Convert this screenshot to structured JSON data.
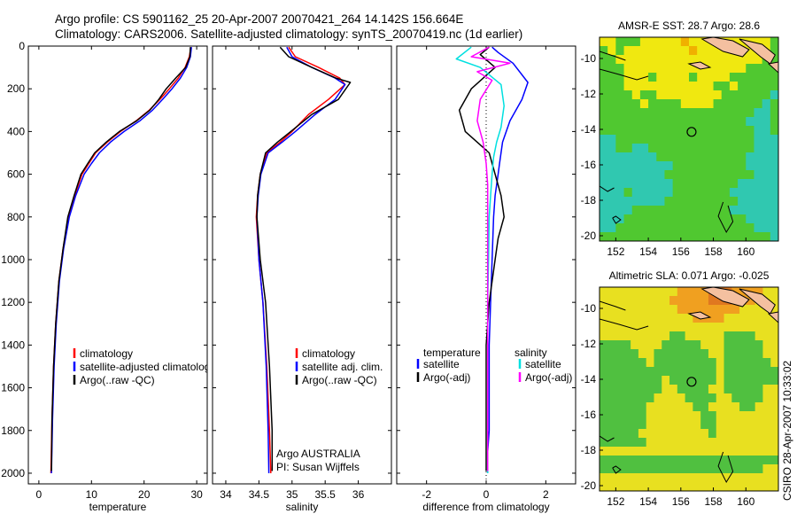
{
  "figure": {
    "title_line1": "Argo profile: CS 5901162_25 20-Apr-2007 20070421_264 14.142S 156.664E",
    "title_line2": "Climatology: CARS2006. Satellite-adjusted climatology: synTS_20070419.nc (1d earlier)",
    "side_stamp": "CSIRO 28-Apr-2007 10:33:02"
  },
  "chart_data": [
    {
      "id": "temperature",
      "type": "line",
      "xlabel": "temperature",
      "xlim": [
        -2,
        32
      ],
      "xticks": [
        0,
        10,
        20,
        30
      ],
      "ylim": [
        2050,
        0
      ],
      "yticks": [
        0,
        200,
        400,
        600,
        800,
        1000,
        1200,
        1400,
        1600,
        1800,
        2000
      ],
      "legend": {
        "position": "bottom-right",
        "labels": [
          "climatology",
          "satellite-adjusted climatology",
          "Argo(..raw -QC)"
        ]
      },
      "series": [
        {
          "name": "climatology",
          "color": "#ff0000",
          "width": 1.5,
          "x": [
            28.9,
            28.6,
            27.8,
            26.5,
            24.8,
            23.0,
            21.0,
            18.5,
            15.5,
            13.0,
            10.8,
            9.5,
            8.2,
            6.8,
            5.6,
            4.6,
            3.8,
            3.2,
            2.8,
            2.5,
            2.3
          ],
          "y": [
            5,
            50,
            100,
            150,
            200,
            250,
            300,
            350,
            400,
            450,
            500,
            550,
            600,
            700,
            800,
            950,
            1100,
            1300,
            1500,
            1750,
            2000
          ]
        },
        {
          "name": "satellite-adjusted climatology",
          "color": "#0000ff",
          "width": 1.5,
          "x": [
            29.0,
            28.8,
            28.1,
            26.9,
            25.3,
            23.5,
            21.6,
            19.2,
            16.2,
            13.6,
            11.5,
            10.0,
            8.6,
            7.0,
            5.8,
            4.7,
            3.9,
            3.3,
            2.9,
            2.6,
            2.4
          ],
          "y": [
            5,
            50,
            100,
            150,
            200,
            250,
            300,
            350,
            400,
            450,
            500,
            550,
            600,
            700,
            800,
            950,
            1100,
            1300,
            1500,
            1750,
            2000
          ]
        },
        {
          "name": "Argo(..raw -QC)",
          "color": "#000000",
          "width": 1.5,
          "x": [
            28.8,
            28.7,
            27.9,
            26.0,
            24.2,
            22.8,
            21.1,
            18.6,
            15.3,
            12.8,
            10.6,
            9.3,
            8.0,
            6.7,
            5.5,
            4.6,
            3.8,
            3.2,
            2.8,
            2.5,
            2.4
          ],
          "y": [
            5,
            50,
            100,
            150,
            200,
            250,
            300,
            350,
            400,
            450,
            500,
            550,
            600,
            700,
            800,
            950,
            1100,
            1300,
            1500,
            1750,
            1990
          ]
        }
      ]
    },
    {
      "id": "salinity",
      "type": "line",
      "xlabel": "salinity",
      "xlim": [
        33.8,
        36.5
      ],
      "xticks": [
        34,
        34.5,
        35,
        35.5,
        36
      ],
      "ylim": [
        2050,
        0
      ],
      "yticks": [
        0,
        200,
        400,
        600,
        800,
        1000,
        1200,
        1400,
        1600,
        1800,
        2000
      ],
      "legend": {
        "position": "bottom-right",
        "labels": [
          "climatology",
          "satellite adj. clim.",
          "Argo(..raw -QC)"
        ]
      },
      "annotation": [
        "Argo AUSTRALIA",
        "PI: Susan Wijffels"
      ],
      "series": [
        {
          "name": "climatology",
          "color": "#ff0000",
          "width": 1.5,
          "x": [
            34.95,
            35.05,
            35.4,
            35.72,
            35.8,
            35.55,
            35.25,
            35.0,
            34.82,
            34.62,
            34.52,
            34.48,
            34.46,
            34.5,
            34.56,
            34.62,
            34.66,
            34.68
          ],
          "y": [
            5,
            50,
            100,
            150,
            180,
            250,
            320,
            400,
            450,
            500,
            600,
            700,
            800,
            1000,
            1200,
            1500,
            1800,
            2000
          ]
        },
        {
          "name": "satellite adj. clim.",
          "color": "#0000ff",
          "width": 1.5,
          "x": [
            34.92,
            35.0,
            35.3,
            35.65,
            35.8,
            35.65,
            35.35,
            35.05,
            34.85,
            34.64,
            34.53,
            34.49,
            34.47,
            34.5,
            34.56,
            34.61,
            34.64,
            34.65
          ],
          "y": [
            5,
            50,
            100,
            150,
            180,
            250,
            320,
            400,
            450,
            500,
            600,
            700,
            800,
            1000,
            1200,
            1500,
            1800,
            2000
          ]
        },
        {
          "name": "Argo(..raw -QC)",
          "color": "#000000",
          "width": 1.5,
          "x": [
            34.82,
            34.95,
            35.3,
            35.66,
            35.88,
            35.7,
            35.3,
            34.98,
            34.78,
            34.6,
            34.52,
            34.48,
            34.47,
            34.52,
            34.6,
            34.66,
            34.7,
            34.7
          ],
          "y": [
            5,
            50,
            100,
            150,
            170,
            250,
            320,
            400,
            450,
            500,
            600,
            700,
            800,
            1000,
            1200,
            1500,
            1800,
            1990
          ]
        }
      ]
    },
    {
      "id": "difference",
      "type": "line",
      "xlabel": "difference from climatology",
      "xlim": [
        -3,
        3
      ],
      "xticks": [
        -2,
        0,
        2
      ],
      "ylim": [
        2050,
        0
      ],
      "yticks": [
        0,
        200,
        400,
        600,
        800,
        1000,
        1200,
        1400,
        1600,
        1800,
        2000
      ],
      "legend": {
        "position": "bottom",
        "temperature_header": "temperature",
        "salinity_header": "salinity",
        "labels": [
          "satellite",
          "Argo(-adj)",
          "satellite",
          "Argo(-adj)"
        ]
      },
      "series": [
        {
          "name": "temperature satellite",
          "color": "#0000ff",
          "width": 1.5,
          "x": [
            0.2,
            0.4,
            0.9,
            1.4,
            1.2,
            0.8,
            0.55,
            0.45,
            0.4,
            0.3,
            0.25,
            0.2,
            0.15,
            0.1,
            0.1,
            0.1,
            0.05,
            0.05
          ],
          "y": [
            5,
            30,
            80,
            170,
            250,
            350,
            450,
            550,
            600,
            700,
            800,
            1000,
            1200,
            1400,
            1600,
            1800,
            1900,
            2000
          ]
        },
        {
          "name": "temperature Argo(-adj)",
          "color": "#000000",
          "width": 1.5,
          "x": [
            0.1,
            -0.2,
            0.3,
            -0.5,
            -0.9,
            -0.7,
            -0.3,
            0.1,
            0.3,
            0.5,
            0.6,
            0.4,
            0.3,
            0.1,
            0.0,
            0.0,
            0.0,
            0.0
          ],
          "y": [
            5,
            40,
            100,
            200,
            300,
            400,
            450,
            500,
            600,
            700,
            800,
            900,
            1000,
            1200,
            1400,
            1600,
            1800,
            1990
          ]
        },
        {
          "name": "salinity satellite",
          "color": "#00e0e0",
          "width": 1.5,
          "x": [
            -0.5,
            -1.0,
            -0.2,
            0.5,
            0.6,
            0.5,
            0.35,
            0.25,
            0.2,
            0.15,
            0.1,
            0.08,
            0.05,
            0.05,
            0.05,
            0.05
          ],
          "y": [
            5,
            60,
            100,
            180,
            280,
            380,
            450,
            520,
            600,
            700,
            800,
            1000,
            1200,
            1500,
            1800,
            2000
          ]
        },
        {
          "name": "salinity Argo(-adj)",
          "color": "#ff00ff",
          "width": 1.5,
          "x": [
            0.1,
            -0.5,
            0.8,
            -0.3,
            0.2,
            -0.2,
            -0.3,
            -0.1,
            0.0,
            0.05,
            0.05,
            0.05,
            0.05,
            0.05,
            0.05,
            0.05,
            0.05
          ],
          "y": [
            5,
            50,
            80,
            120,
            160,
            250,
            350,
            450,
            550,
            650,
            800,
            1000,
            1200,
            1400,
            1600,
            1800,
            1990
          ]
        }
      ]
    },
    {
      "id": "sst_map",
      "type": "heatmap",
      "title": "AMSR-E SST: 28.7 Argo: 28.6",
      "xlim": [
        151,
        162
      ],
      "ylim": [
        -20.3,
        -8.8
      ],
      "xticks": [
        152,
        154,
        156,
        158,
        160
      ],
      "yticks": [
        -10,
        -12,
        -14,
        -16,
        -18,
        -20
      ],
      "argo_position": [
        156.66,
        -14.14
      ],
      "rows": [
        "yygggyyyyyoyyyyyyyyyyg",
        "gygyyyyyyyyoyyyyyyyyyg",
        "ggyyyyyyyyyyyyyyyyyygg",
        "gggyyyyyyyyyyyyyyygggg",
        "gggyyygyyyygyyyygggggg",
        "gggyyyyyyyyyyyggyggggg",
        "ggggyggyyyyyyyygggggga",
        "gggggyggggyyyyggggggag",
        "gggggggggggggggggggaag",
        "ggggggggggggggggggaaag",
        "gggggggggggggggggggaag",
        "aagggggggggggggggggaaa",
        "aaggaagggggggggggggaaa",
        "aaaaaaagggggggggggaaaa",
        "aaaaaaaaagggggggggaaaa",
        "aaaaaaaagggggggggggaaa",
        "aaaaaaaaaggggggggaaaaa",
        "aaagaaaaagggggggaaaaaa",
        "aaaaaaaagggggggggaaaaa",
        "aaaaggggggggggggaaaaaa",
        "aaagggggggggggggggaaaa",
        "aagggggggggggggggggaaa",
        "ggggggggggggggggggggga"
      ],
      "palette": {
        "y": "#f0e810",
        "o": "#f0b000",
        "g": "#50c830",
        "a": "#30c8b0"
      }
    },
    {
      "id": "sla_map",
      "type": "heatmap",
      "title": "Altimetric SLA: 0.071 Argo: -0.025",
      "xlim": [
        151,
        162
      ],
      "ylim": [
        -20.3,
        -8.8
      ],
      "xticks": [
        152,
        154,
        156,
        158,
        160
      ],
      "yticks": [
        -10,
        -12,
        -14,
        -16,
        -18,
        -20
      ],
      "argo_position": [
        156.66,
        -14.14
      ],
      "rows": [
        "yyyyyyyyyyoooorrrooooyy",
        "yyyyyyyyyooooorrroooyyy",
        "yyyyyyyyyyooooooooyyyyy",
        "yyyyyyyyyyyyooooyyyyyyy",
        "yyyyyyyyyyyyyyyyyyyyyyy",
        "yyyyyyyyyggyyyyyggggyyy",
        "ggggyyyygggggyyygggggyy",
        "gggggyygggggggyygggggyy",
        "ggggggyggggggggyggggggy",
        "gggggggggggggggyggggggg",
        "ggggggggyggggggyggggggg",
        "ggggggggyyggggyygggggyy",
        "gggggggyyyyggggyyggggyy",
        "ggggggyyyyyyggyyyyggyyy",
        "ggggggyyyyyyyggyyyyyyyy",
        "ggggggyyyyyyyggyyyyyyyy",
        "gggggyyyyyyyyygyyyyyyyy",
        "ggggggyyyyyyyyyyyyyyyyy",
        "yyyyyyyyyyyyyyyyyyyyyyy",
        "ggggggggggggggggggggggg",
        "gggggggggggggggggggggyy",
        "yyyyyyyyyyyyyyyyyyyyyyy",
        "yyyyyyyyyyyyyyyyyyyyyyy"
      ],
      "palette": {
        "y": "#e8e020",
        "o": "#f0a020",
        "r": "#e07820",
        "g": "#50c040"
      }
    }
  ]
}
